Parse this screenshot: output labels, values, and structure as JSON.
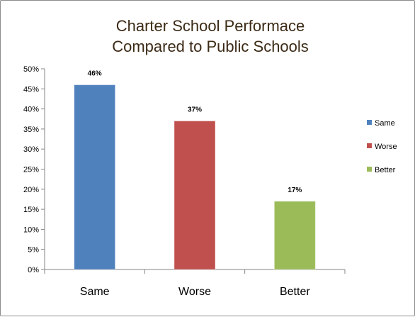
{
  "chart_data": {
    "type": "bar",
    "title_lines": [
      "Charter School Performace",
      "Compared to Public Schools"
    ],
    "categories": [
      "Same",
      "Worse",
      "Better"
    ],
    "values": [
      46,
      37,
      17
    ],
    "data_labels": [
      "46%",
      "37%",
      "17%"
    ],
    "colors": [
      "#4f81bd",
      "#c0504d",
      "#9bbb59"
    ],
    "ylim": [
      0,
      50
    ],
    "yticks": [
      0,
      5,
      10,
      15,
      20,
      25,
      30,
      35,
      40,
      45,
      50
    ],
    "ytick_labels": [
      "0%",
      "5%",
      "10%",
      "15%",
      "20%",
      "25%",
      "30%",
      "35%",
      "40%",
      "45%",
      "50%"
    ],
    "grid": false,
    "legend": {
      "placement": "right",
      "entries": [
        {
          "label": "Same",
          "color": "#4f81bd"
        },
        {
          "label": "Worse",
          "color": "#c0504d"
        },
        {
          "label": "Better",
          "color": "#9bbb59"
        }
      ]
    }
  }
}
